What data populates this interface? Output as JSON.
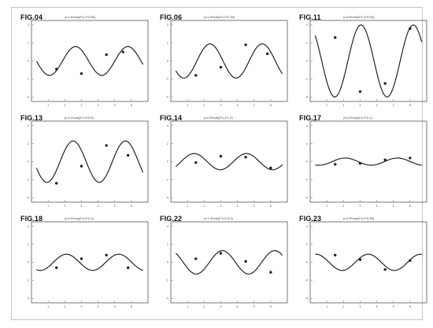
{
  "chart_data": [
    {
      "type": "scatter",
      "label": "FIG.04",
      "equation": "y=1.6*cos(2*x-2*2.65)",
      "amp": 1.6,
      "phase": 2.65,
      "xlim": [
        0,
        7
      ],
      "ylim": [
        -4.5,
        4.5
      ],
      "xticks": [
        "1",
        "2",
        "3",
        "4",
        "5",
        "6"
      ],
      "xtick_values": [
        1,
        2,
        3,
        4,
        5,
        6
      ],
      "yticks": [
        "4",
        "2",
        "0",
        "-2",
        "-4"
      ],
      "ytick_values": [
        4,
        2,
        0,
        -2,
        -4
      ],
      "x": [
        1.5,
        3.0,
        4.5,
        5.5
      ],
      "y": [
        -0.9,
        -1.4,
        0.7,
        1.0
      ]
    },
    {
      "type": "scatter",
      "label": "FIG.06",
      "equation": "y=1.9*cos(2*x-2*2.35)",
      "amp": 1.9,
      "phase": 2.35,
      "xlim": [
        0,
        7
      ],
      "ylim": [
        -4.5,
        4.5
      ],
      "xticks": [
        "1",
        "2",
        "3",
        "4",
        "5",
        "6"
      ],
      "xtick_values": [
        1,
        2,
        3,
        4,
        5,
        6
      ],
      "yticks": [
        "4",
        "2",
        "0",
        "-2",
        "-4"
      ],
      "ytick_values": [
        4,
        2,
        0,
        -2,
        -4
      ],
      "x": [
        1.5,
        3.0,
        4.5,
        5.8
      ],
      "y": [
        -1.6,
        -0.7,
        1.8,
        0.8
      ]
    },
    {
      "type": "scatter",
      "label": "FIG.11",
      "equation": "y=4.0*cos(2*x-2*3.05)",
      "amp": 4.0,
      "phase": 3.05,
      "xlim": [
        0,
        7
      ],
      "ylim": [
        -4.5,
        4.5
      ],
      "xticks": [
        "1",
        "2",
        "3",
        "4",
        "5",
        "6"
      ],
      "xtick_values": [
        1,
        2,
        3,
        4,
        5,
        6
      ],
      "yticks": [
        "4",
        "2",
        "0",
        "-2",
        "-4"
      ],
      "ytick_values": [
        4,
        2,
        0,
        -2,
        -4
      ],
      "x": [
        1.5,
        3.0,
        4.5,
        6.0
      ],
      "y": [
        2.6,
        -3.4,
        -2.5,
        3.6
      ]
    },
    {
      "type": "scatter",
      "label": "FIG.13",
      "equation": "y=2.3*cos(2*x-2*2.5)",
      "amp": 2.3,
      "phase": 2.5,
      "xlim": [
        0,
        7
      ],
      "ylim": [
        -4.5,
        4.5
      ],
      "xticks": [
        "1",
        "2",
        "3",
        "4",
        "5",
        "6"
      ],
      "xtick_values": [
        1,
        2,
        3,
        4,
        5,
        6
      ],
      "yticks": [
        "4",
        "2",
        "0",
        "-2",
        "-4"
      ],
      "ytick_values": [
        4,
        2,
        0,
        -2,
        -4
      ],
      "x": [
        1.5,
        3.0,
        4.5,
        5.8
      ],
      "y": [
        -2.4,
        -0.5,
        1.8,
        0.7
      ]
    },
    {
      "type": "scatter",
      "label": "FIG.14",
      "equation": "y=0.9*cos(2*x-2*1.4)",
      "amp": 0.9,
      "phase": 1.4,
      "xlim": [
        0,
        7
      ],
      "ylim": [
        -4.5,
        4.5
      ],
      "xticks": [
        "1",
        "2",
        "3",
        "4",
        "5",
        "6"
      ],
      "xtick_values": [
        1,
        2,
        3,
        4,
        5,
        6
      ],
      "yticks": [
        "4",
        "2",
        "0",
        "-2",
        "-4"
      ],
      "ytick_values": [
        4,
        2,
        0,
        -2,
        -4
      ],
      "x": [
        1.5,
        3.0,
        4.5,
        6.0
      ],
      "y": [
        -0.1,
        0.6,
        0.5,
        -0.7
      ]
    },
    {
      "type": "scatter",
      "label": "FIG.17",
      "equation": "y=0.4*cos(2*x-2*2.1)",
      "amp": 0.4,
      "phase": 2.1,
      "xlim": [
        0,
        7
      ],
      "ylim": [
        -4.5,
        4.5
      ],
      "xticks": [
        "1",
        "2",
        "3",
        "4",
        "5",
        "6"
      ],
      "xtick_values": [
        1,
        2,
        3,
        4,
        5,
        6
      ],
      "yticks": [
        "4",
        "2",
        "0",
        "-2",
        "-4"
      ],
      "ytick_values": [
        4,
        2,
        0,
        -2,
        -4
      ],
      "x": [
        1.5,
        3.0,
        4.5,
        6.0
      ],
      "y": [
        -0.3,
        -0.2,
        0.2,
        0.4
      ]
    },
    {
      "type": "scatter",
      "label": "FIG.18",
      "equation": "y=0.9*cos(2*x-2*2.1)",
      "amp": 0.9,
      "phase": 2.1,
      "xlim": [
        0,
        7
      ],
      "ylim": [
        -4.5,
        4.5
      ],
      "xticks": [
        "1",
        "2",
        "3",
        "4",
        "5",
        "6"
      ],
      "xtick_values": [
        1,
        2,
        3,
        4,
        5,
        6
      ],
      "yticks": [
        "4",
        "2",
        "0",
        "-2",
        "-4"
      ],
      "ytick_values": [
        4,
        2,
        0,
        -2,
        -4
      ],
      "x": [
        1.5,
        3.0,
        4.5,
        5.8
      ],
      "y": [
        -0.6,
        0.4,
        0.8,
        -0.6
      ]
    },
    {
      "type": "scatter",
      "label": "FIG.22",
      "equation": "y=1.3*cos(2*x-2*3.1)",
      "amp": 1.3,
      "phase": 3.1,
      "xlim": [
        0,
        7
      ],
      "ylim": [
        -4.5,
        4.5
      ],
      "xticks": [
        "1",
        "2",
        "3",
        "4",
        "5",
        "6"
      ],
      "xtick_values": [
        1,
        2,
        3,
        4,
        5,
        6
      ],
      "yticks": [
        "4",
        "2",
        "0",
        "-2",
        "-4"
      ],
      "ytick_values": [
        4,
        2,
        0,
        -2,
        -4
      ],
      "x": [
        1.5,
        3.0,
        4.5,
        6.0
      ],
      "y": [
        0.4,
        1.0,
        0.1,
        -1.1
      ]
    },
    {
      "type": "scatter",
      "label": "FIG.23",
      "equation": "y=0.9*cos(2*x-2*0.35)",
      "amp": 0.9,
      "phase": 0.35,
      "xlim": [
        0,
        7
      ],
      "ylim": [
        -4.5,
        4.5
      ],
      "xticks": [
        "1",
        "2",
        "3",
        "4",
        "5",
        "6"
      ],
      "xtick_values": [
        1,
        2,
        3,
        4,
        5,
        6
      ],
      "yticks": [
        "4",
        "2",
        "0",
        "-2",
        "-4"
      ],
      "ytick_values": [
        4,
        2,
        0,
        -2,
        -4
      ],
      "x": [
        1.5,
        3.0,
        4.5,
        6.0
      ],
      "y": [
        0.8,
        0.3,
        -0.8,
        0.2
      ]
    }
  ]
}
